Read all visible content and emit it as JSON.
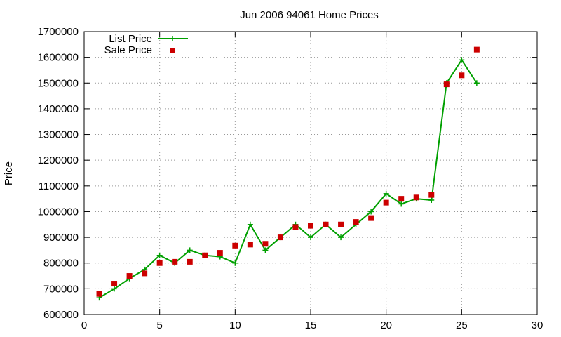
{
  "chart_data": {
    "type": "line",
    "title": "Jun 2006 94061 Home Prices",
    "xlabel": "",
    "ylabel": "Price",
    "xlim": [
      0,
      30
    ],
    "ylim": [
      600000,
      1700000
    ],
    "x_ticks": [
      0,
      5,
      10,
      15,
      20,
      25,
      30
    ],
    "y_ticks": [
      600000,
      700000,
      800000,
      900000,
      1000000,
      1100000,
      1200000,
      1300000,
      1400000,
      1500000,
      1600000,
      1700000
    ],
    "grid": true,
    "legend_position": "top-left",
    "series": [
      {
        "name": "List Price",
        "style": "line-with-plus-markers",
        "color": "#00a000",
        "x": [
          1,
          2,
          3,
          4,
          5,
          6,
          7,
          8,
          9,
          10,
          11,
          12,
          13,
          14,
          15,
          16,
          17,
          18,
          19,
          20,
          21,
          22,
          23,
          24,
          25,
          26
        ],
        "y": [
          665000,
          700000,
          740000,
          775000,
          830000,
          800000,
          850000,
          830000,
          825000,
          800000,
          950000,
          850000,
          900000,
          950000,
          900000,
          950000,
          900000,
          950000,
          1000000,
          1070000,
          1030000,
          1050000,
          1045000,
          1500000,
          1590000,
          1500000
        ]
      },
      {
        "name": "Sale Price",
        "style": "square-markers",
        "color": "#cc0000",
        "x": [
          1,
          2,
          3,
          4,
          5,
          6,
          7,
          8,
          9,
          10,
          11,
          12,
          13,
          14,
          15,
          16,
          17,
          18,
          19,
          20,
          21,
          22,
          23,
          24,
          25,
          26
        ],
        "y": [
          680000,
          720000,
          750000,
          760000,
          800000,
          805000,
          805000,
          830000,
          840000,
          868000,
          872000,
          875000,
          900000,
          940000,
          945000,
          950000,
          950000,
          960000,
          975000,
          1035000,
          1050000,
          1055000,
          1065000,
          1495000,
          1530000,
          1630000
        ]
      }
    ]
  }
}
